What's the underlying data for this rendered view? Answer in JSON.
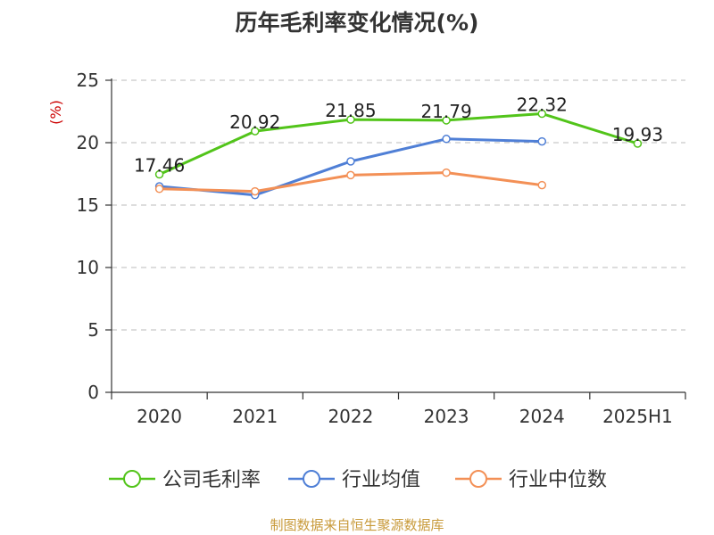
{
  "chart_data": {
    "type": "line",
    "title": "历年毛利率变化情况(%)",
    "ylabel": "(%)",
    "xlabel": "",
    "categories": [
      "2020",
      "2021",
      "2022",
      "2023",
      "2024",
      "2025H1"
    ],
    "ylim": [
      0,
      25
    ],
    "yticks": [
      0,
      5,
      10,
      15,
      20,
      25
    ],
    "grid": true,
    "legend_position": "bottom",
    "series": [
      {
        "name": "公司毛利率",
        "color": "#52c41a",
        "values": [
          17.46,
          20.92,
          21.85,
          21.79,
          22.32,
          19.93
        ],
        "labels": [
          "17.46",
          "20.92",
          "21.85",
          "21.79",
          "22.32",
          "19.93"
        ]
      },
      {
        "name": "行业均值",
        "color": "#4f7fd6",
        "values": [
          16.5,
          15.8,
          18.5,
          20.3,
          20.1,
          null
        ]
      },
      {
        "name": "行业中位数",
        "color": "#f39056",
        "values": [
          16.3,
          16.1,
          17.4,
          17.6,
          16.6,
          null
        ]
      }
    ]
  },
  "footer": {
    "source": "制图数据来自恒生聚源数据库"
  }
}
